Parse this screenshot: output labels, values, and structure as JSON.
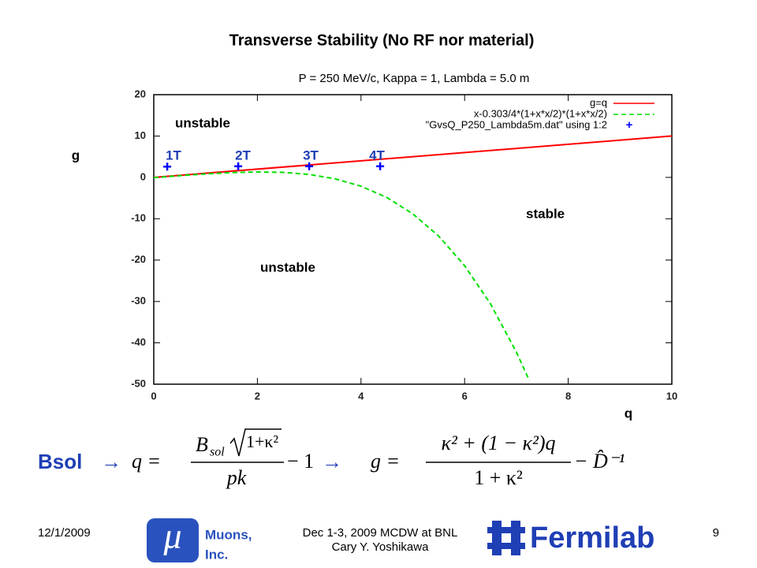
{
  "slide": {
    "title": "Transverse Stability (No RF nor material)",
    "bsol": "Bsol",
    "arrow": "→",
    "eq1": {
      "lhs": "q =",
      "base": "B",
      "sub": "sol",
      "radicand": "1+κ²",
      "denominator": "pk",
      "tail": "− 1"
    },
    "eq2": {
      "lhs": "g =",
      "numerator": "κ² + (1 − κ²)q",
      "denominator": "1 + κ²",
      "tail": "− D̂⁻¹"
    },
    "footer": {
      "date": "12/1/2009",
      "event": "Dec 1-3, 2009 MCDW at BNL",
      "author": "Cary Y. Yoshikawa",
      "page": "9",
      "logo1_line1": "Muons,",
      "logo1_line2": "Inc.",
      "logo1_symbol": "μ",
      "logo2": "Fermilab"
    }
  },
  "chart_data": {
    "type": "line",
    "title": "P = 250 MeV/c, Kappa = 1, Lambda = 5.0 m",
    "xlabel": "q",
    "ylabel": "g",
    "xlim": [
      0,
      10
    ],
    "xticks": [
      0,
      2,
      4,
      6,
      8,
      10
    ],
    "ylim": [
      -50,
      20
    ],
    "yticks": [
      -50,
      -40,
      -30,
      -20,
      -10,
      0,
      10,
      20
    ],
    "series": [
      {
        "name": "g=q",
        "color": "#ff0000",
        "style": "solid",
        "x": [
          0,
          10
        ],
        "values": [
          0,
          10
        ]
      },
      {
        "name": "x-0.303/4*(1+x*x/2)*(1+x*x/2)",
        "color": "#00e000",
        "style": "dashed",
        "x": [
          0,
          0.5,
          1,
          1.5,
          2,
          2.5,
          3,
          3.5,
          4,
          4.5,
          5,
          5.5,
          6,
          6.5,
          7,
          7.25
        ],
        "values": [
          -0.076,
          0.404,
          0.83,
          1.158,
          1.318,
          1.211,
          0.709,
          -0.346,
          -2.136,
          -4.875,
          -8.806,
          -14.196,
          -21.346,
          -30.581,
          -42.256,
          -49.12
        ]
      },
      {
        "name": "\"GvsQ_P250_Lambda5m.dat\" using 1:2",
        "color": "#0000ff",
        "style": "points",
        "x": [
          0.26,
          1.63,
          3.0,
          4.37
        ],
        "values": [
          2.6,
          2.7,
          2.7,
          2.7
        ]
      }
    ],
    "annotations": [
      "unstable",
      "1T",
      "2T",
      "3T",
      "4T",
      "stable",
      "unstable"
    ]
  }
}
